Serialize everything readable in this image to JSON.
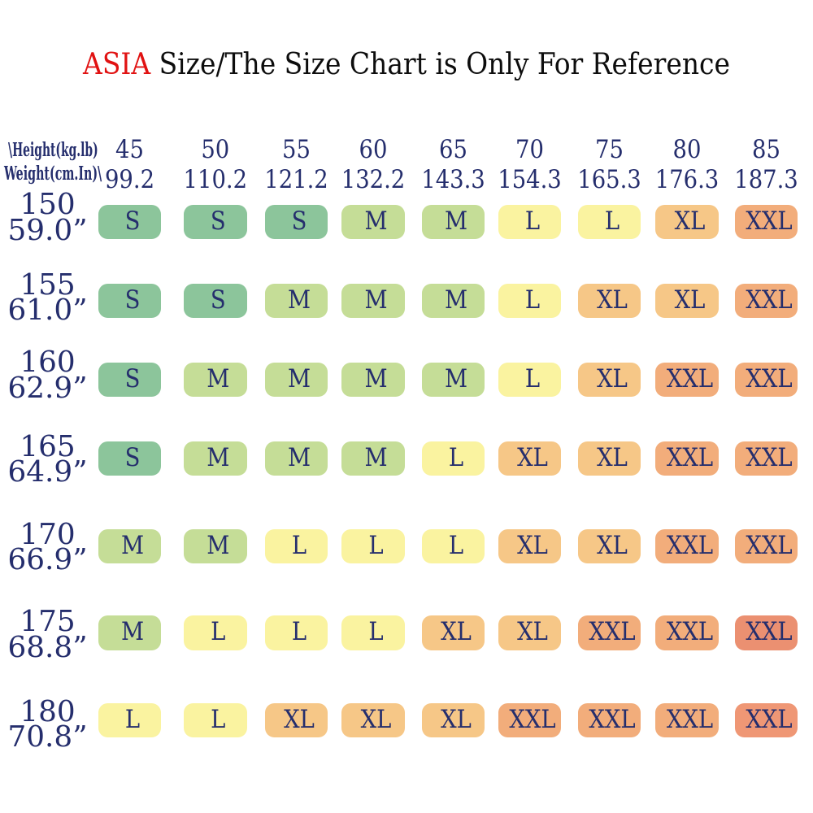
{
  "title": {
    "highlight": "ASIA",
    "rest": " Size/The Size Chart is Only For Reference",
    "highlight_color": "#e11212",
    "text_color": "#0d0d0d"
  },
  "corner_label": {
    "line1": "\\Height(kg.lb)",
    "line2": "Weight(cm.In)\\"
  },
  "text_color_navy": "#252e6d",
  "chart_data": {
    "type": "table",
    "title": "ASIA Size/The Size Chart is Only For Reference",
    "x_axis": {
      "label": "Weight (kg / lb)",
      "ticks_kg": [
        "45",
        "50",
        "55",
        "60",
        "65",
        "70",
        "75",
        "80",
        "85"
      ],
      "ticks_lb": [
        "99.2",
        "110.2",
        "121.2",
        "132.2",
        "143.3",
        "154.3",
        "165.3",
        "176.3",
        "187.3"
      ]
    },
    "y_axis": {
      "label": "Height (cm / in)",
      "ticks_cm": [
        "150",
        "155",
        "160",
        "165",
        "170",
        "175",
        "180"
      ],
      "ticks_in": [
        "59.0”",
        "61.0”",
        "62.9”",
        "64.9”",
        "66.9”",
        "68.8”",
        "70.8”"
      ]
    },
    "sizes": [
      [
        "S",
        "S",
        "S",
        "M",
        "M",
        "L",
        "L",
        "XL",
        "XXL"
      ],
      [
        "S",
        "S",
        "M",
        "M",
        "M",
        "L",
        "XL",
        "XL",
        "XXL"
      ],
      [
        "S",
        "M",
        "M",
        "M",
        "M",
        "L",
        "XL",
        "XXL",
        "XXL"
      ],
      [
        "S",
        "M",
        "M",
        "M",
        "L",
        "XL",
        "XL",
        "XXL",
        "XXL"
      ],
      [
        "M",
        "M",
        "L",
        "L",
        "L",
        "XL",
        "XL",
        "XXL",
        "XXL"
      ],
      [
        "M",
        "L",
        "L",
        "L",
        "XL",
        "XL",
        "XXL",
        "XXL",
        "XXL"
      ],
      [
        "L",
        "L",
        "XL",
        "XL",
        "XL",
        "XXL",
        "XXL",
        "XXL",
        "XXL"
      ]
    ],
    "cell_colors": [
      [
        "#8cc59b",
        "#8cc59b",
        "#8cc59b",
        "#c5dd97",
        "#c5dd97",
        "#faf3a0",
        "#faf3a0",
        "#f6c787",
        "#f2ad7b"
      ],
      [
        "#8cc59b",
        "#8cc59b",
        "#c5dd97",
        "#c5dd97",
        "#c5dd97",
        "#faf3a0",
        "#f6c787",
        "#f6c787",
        "#f2ad7b"
      ],
      [
        "#8cc59b",
        "#c5dd97",
        "#c5dd97",
        "#c5dd97",
        "#c5dd97",
        "#faf3a0",
        "#f6c787",
        "#f2ad7b",
        "#f2ad7b"
      ],
      [
        "#8cc59b",
        "#c5dd97",
        "#c5dd97",
        "#c5dd97",
        "#faf3a0",
        "#f6c787",
        "#f6c787",
        "#f2ad7b",
        "#f2ad7b"
      ],
      [
        "#c5dd97",
        "#c5dd97",
        "#faf3a0",
        "#faf3a0",
        "#faf3a0",
        "#f6c787",
        "#f6c787",
        "#f2ad7b",
        "#f2ad7b"
      ],
      [
        "#c5dd97",
        "#faf3a0",
        "#faf3a0",
        "#faf3a0",
        "#f6c787",
        "#f6c787",
        "#f2ad7b",
        "#f2ad7b",
        "#eb9071"
      ],
      [
        "#faf3a0",
        "#faf3a0",
        "#f6c787",
        "#f6c787",
        "#f6c787",
        "#f2ad7b",
        "#f2ad7b",
        "#f2ad7b",
        "#ef9775"
      ]
    ]
  }
}
